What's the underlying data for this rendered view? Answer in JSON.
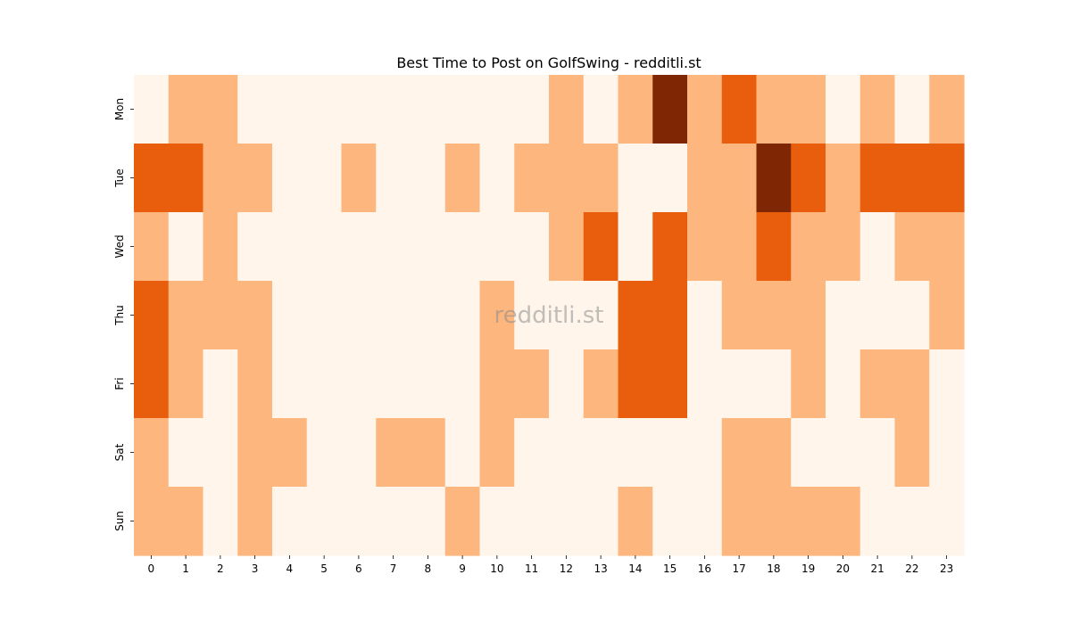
{
  "chart_data": {
    "type": "heatmap",
    "title": "Best Time to Post on GolfSwing - redditli.st",
    "watermark": "redditli.st",
    "x_labels": [
      "0",
      "1",
      "2",
      "3",
      "4",
      "5",
      "6",
      "7",
      "8",
      "9",
      "10",
      "11",
      "12",
      "13",
      "14",
      "15",
      "16",
      "17",
      "18",
      "19",
      "20",
      "21",
      "22",
      "23"
    ],
    "y_labels": [
      "Mon",
      "Tue",
      "Wed",
      "Thu",
      "Fri",
      "Sat",
      "Sun"
    ],
    "values": [
      [
        0,
        1,
        1,
        0,
        0,
        0,
        0,
        0,
        0,
        0,
        0,
        0,
        1,
        0,
        1,
        3,
        1,
        2,
        1,
        1,
        0,
        1,
        0,
        1
      ],
      [
        2,
        2,
        1,
        1,
        0,
        0,
        1,
        0,
        0,
        1,
        0,
        1,
        1,
        1,
        0,
        0,
        1,
        1,
        3,
        2,
        1,
        2,
        2,
        2
      ],
      [
        1,
        0,
        1,
        0,
        0,
        0,
        0,
        0,
        0,
        0,
        0,
        0,
        1,
        2,
        0,
        2,
        1,
        1,
        2,
        1,
        1,
        0,
        1,
        1
      ],
      [
        2,
        1,
        1,
        1,
        0,
        0,
        0,
        0,
        0,
        0,
        1,
        0,
        0,
        0,
        2,
        2,
        0,
        1,
        1,
        1,
        0,
        0,
        0,
        1
      ],
      [
        2,
        1,
        0,
        1,
        0,
        0,
        0,
        0,
        0,
        0,
        1,
        1,
        0,
        1,
        2,
        2,
        0,
        0,
        0,
        1,
        0,
        1,
        1,
        0
      ],
      [
        1,
        0,
        0,
        1,
        1,
        0,
        0,
        1,
        1,
        0,
        1,
        0,
        0,
        0,
        0,
        0,
        0,
        1,
        1,
        0,
        0,
        0,
        1,
        0
      ],
      [
        1,
        1,
        0,
        1,
        0,
        0,
        0,
        0,
        0,
        1,
        0,
        0,
        0,
        0,
        1,
        0,
        0,
        1,
        1,
        1,
        1,
        0,
        0,
        0
      ]
    ],
    "value_range": [
      0,
      3
    ],
    "colors": [
      "#fff5eb",
      "#fdb77e",
      "#e95e0d",
      "#7f2704"
    ],
    "grid": false,
    "colorbar": false
  }
}
